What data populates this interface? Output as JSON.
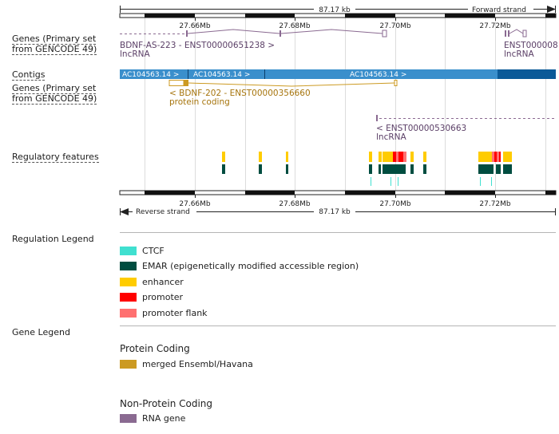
{
  "ruler": {
    "span": "87.17 kb",
    "forward": "Forward strand",
    "reverse": "Reverse strand",
    "ticks": [
      "27.66Mb",
      "27.68Mb",
      "27.70Mb",
      "27.72Mb"
    ]
  },
  "tracks": {
    "genes_primary_1": "Genes (Primary set from GENCODE 49)",
    "contigs": "Contigs",
    "genes_primary_2": "Genes (Primary set from GENCODE 49)",
    "regulatory": "Regulatory features"
  },
  "genes": {
    "bdnf_as": {
      "name": "BDNF-AS-223 - ENST00000651238 >",
      "biotype": "lncRNA"
    },
    "enst_right": {
      "name": "ENST000008",
      "biotype": "lncRNA"
    },
    "bdnf_202": {
      "name": "< BDNF-202 - ENST00000356660",
      "biotype": "protein coding"
    },
    "enst_530663": {
      "name": "< ENST00000530663",
      "biotype": "lncRNA"
    }
  },
  "contigs": [
    {
      "label": "AC104563.14 >"
    },
    {
      "label": "AC104563.14 >"
    },
    {
      "label": "AC104563.14 >"
    }
  ],
  "regulation_legend": {
    "title": "Regulation Legend",
    "items": [
      {
        "label": "CTCF",
        "color": "#40e0d0"
      },
      {
        "label": "EMAR (epigenetically modified accessible region)",
        "color": "#004d40"
      },
      {
        "label": "enhancer",
        "color": "#ffcc00"
      },
      {
        "label": "promoter",
        "color": "#ff0000"
      },
      {
        "label": "promoter flank",
        "color": "#ff7070"
      }
    ]
  },
  "gene_legend": {
    "title": "Gene Legend",
    "protein_coding": {
      "title": "Protein Coding",
      "item": "merged Ensembl/Havana",
      "color": "#cc9a22"
    },
    "non_protein_coding": {
      "title": "Non-Protein Coding",
      "item": "RNA gene",
      "color": "#8a6a91"
    }
  },
  "colors": {
    "contig": "#3a8fcc",
    "contig_dark": "#0b5a98",
    "lncrna": "#8a6a91",
    "protein": "#cc9a22"
  }
}
